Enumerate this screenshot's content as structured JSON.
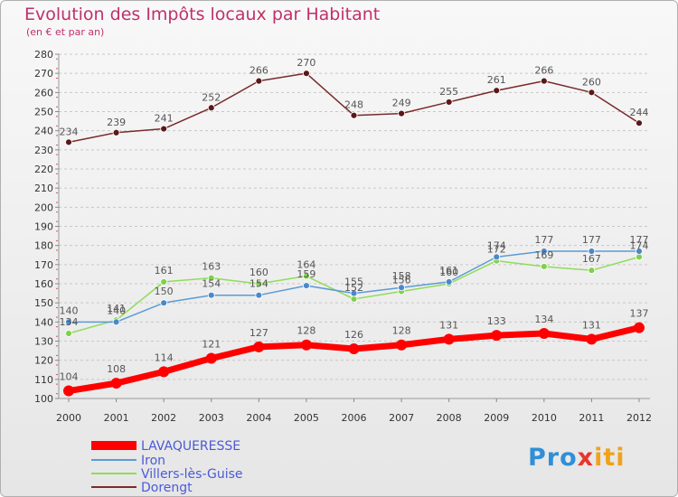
{
  "chart_data": {
    "type": "line",
    "title": "Evolution des Impôts locaux par Habitant",
    "subtitle": "(en € et par an)",
    "x": [
      "2000",
      "2001",
      "2002",
      "2003",
      "2004",
      "2005",
      "2006",
      "2007",
      "2008",
      "2009",
      "2010",
      "2011",
      "2012"
    ],
    "ylim": [
      100,
      280
    ],
    "yticks": [
      100,
      110,
      120,
      130,
      140,
      150,
      160,
      170,
      180,
      190,
      200,
      210,
      220,
      230,
      240,
      250,
      260,
      270,
      280
    ],
    "grid": "horizontal dashed",
    "legend_position": "bottom-left",
    "series": [
      {
        "name": "LAVAQUERESSE",
        "color": "#ff0000",
        "values": [
          104,
          108,
          114,
          121,
          127,
          128,
          126,
          128,
          131,
          133,
          134,
          131,
          137
        ]
      },
      {
        "name": "Iron",
        "color": "#5b9bd5",
        "values": [
          140,
          140,
          150,
          154,
          154,
          159,
          155,
          158,
          161,
          174,
          177,
          177,
          177
        ]
      },
      {
        "name": "Villers-lès-Guise",
        "color": "#8fdc5a",
        "values": [
          134,
          141,
          161,
          163,
          160,
          164,
          152,
          156,
          160,
          172,
          169,
          167,
          174
        ]
      },
      {
        "name": "Dorengt",
        "color": "#7a2a2a",
        "values": [
          234,
          239,
          241,
          252,
          266,
          270,
          248,
          249,
          255,
          261,
          266,
          260,
          244
        ]
      }
    ]
  },
  "brand": {
    "parts": [
      "Pro",
      "x",
      "iti"
    ]
  }
}
